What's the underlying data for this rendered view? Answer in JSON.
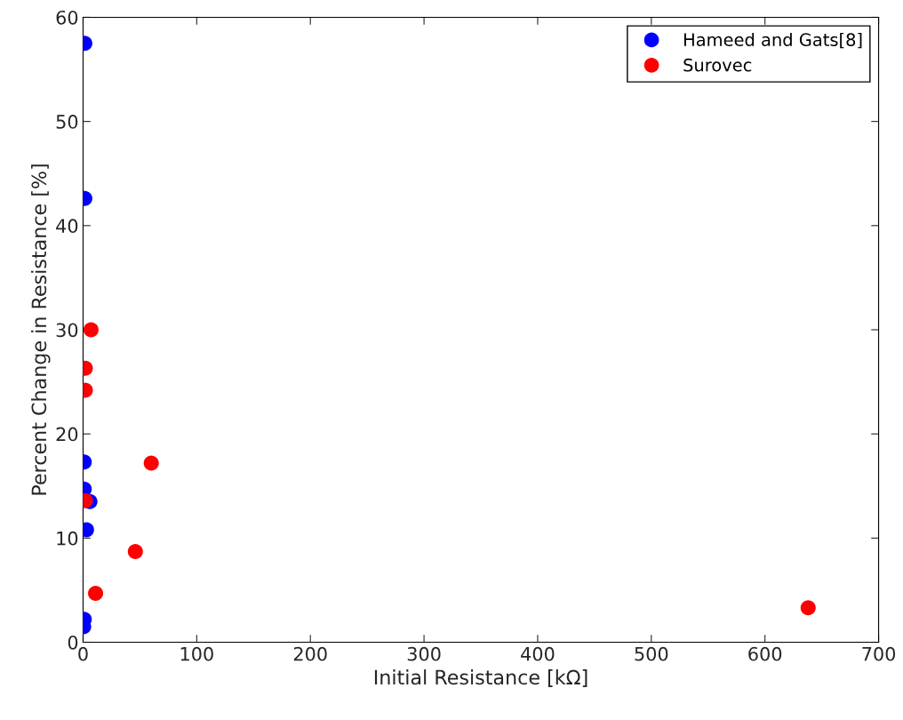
{
  "chart_data": {
    "type": "scatter",
    "xlabel": "Initial Resistance [kΩ]",
    "ylabel": "Percent Change in Resistance [%]",
    "xlim": [
      0,
      700
    ],
    "xticks": [
      0,
      100,
      200,
      300,
      400,
      500,
      600,
      700
    ],
    "ylim": [
      0,
      60
    ],
    "yticks": [
      0,
      10,
      20,
      30,
      40,
      50,
      60
    ],
    "grid": false,
    "legend": "top right",
    "marker": "circle",
    "series": [
      {
        "name": "Hameed and Gats[8]",
        "color": "#0000ff",
        "x": [
          1.5,
          1.5,
          1,
          1,
          6,
          3,
          1,
          0.5
        ],
        "values": [
          57.5,
          42.6,
          17.3,
          14.7,
          13.5,
          10.8,
          2.2,
          1.5
        ]
      },
      {
        "name": "Surovec",
        "color": "#ff0000",
        "x": [
          7,
          2,
          2,
          2,
          11,
          46,
          60,
          638
        ],
        "values": [
          30,
          26.3,
          24.2,
          13.6,
          4.7,
          8.7,
          17.2,
          3.3
        ]
      }
    ]
  }
}
